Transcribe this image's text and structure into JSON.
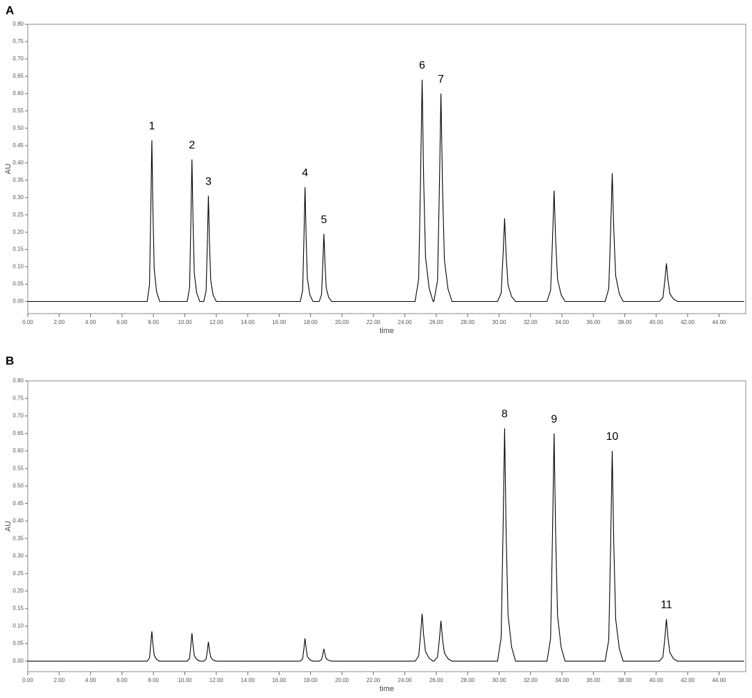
{
  "chart_data": [
    {
      "type": "line",
      "panel": "A",
      "xlabel": "time",
      "ylabel": "AU",
      "color": "#000000",
      "grid": false,
      "xlim": [
        0,
        45.7
      ],
      "ylim": [
        -0.035,
        0.8
      ],
      "xticks": [
        {
          "value": 0,
          "label": "0.00"
        },
        {
          "value": 2,
          "label": "2.00"
        },
        {
          "value": 4,
          "label": "4.00"
        },
        {
          "value": 6,
          "label": "6.00"
        },
        {
          "value": 8,
          "label": "8.00"
        },
        {
          "value": 10,
          "label": "10.00"
        },
        {
          "value": 12,
          "label": "12.00"
        },
        {
          "value": 14,
          "label": "14.00"
        },
        {
          "value": 16,
          "label": "16.00"
        },
        {
          "value": 18,
          "label": "18.00"
        },
        {
          "value": 20,
          "label": "20.00"
        },
        {
          "value": 22,
          "label": "22.00"
        },
        {
          "value": 24,
          "label": "24.00"
        },
        {
          "value": 26,
          "label": "26.00"
        },
        {
          "value": 28,
          "label": "28.00"
        },
        {
          "value": 30,
          "label": "30.00"
        },
        {
          "value": 32,
          "label": "32.00"
        },
        {
          "value": 34,
          "label": "34.00"
        },
        {
          "value": 36,
          "label": "36.00"
        },
        {
          "value": 38,
          "label": "38.00"
        },
        {
          "value": 40,
          "label": "40.00"
        },
        {
          "value": 42,
          "label": "42.00"
        },
        {
          "value": 44,
          "label": "44.00"
        }
      ],
      "yticks": [
        {
          "value": 0,
          "label": "0.00"
        },
        {
          "value": 0.05,
          "label": "0.05"
        },
        {
          "value": 0.1,
          "label": "0.10"
        },
        {
          "value": 0.15,
          "label": "0.15"
        },
        {
          "value": 0.2,
          "label": "0.20"
        },
        {
          "value": 0.25,
          "label": "0.25"
        },
        {
          "value": 0.3,
          "label": "0.30"
        },
        {
          "value": 0.35,
          "label": "0.35"
        },
        {
          "value": 0.4,
          "label": "0.40"
        },
        {
          "value": 0.45,
          "label": "0.45"
        },
        {
          "value": 0.5,
          "label": "0.50"
        },
        {
          "value": 0.55,
          "label": "0.55"
        },
        {
          "value": 0.6,
          "label": "0.60"
        },
        {
          "value": 0.65,
          "label": "0.65"
        },
        {
          "value": 0.7,
          "label": "0.70"
        },
        {
          "value": 0.75,
          "label": "0.75"
        },
        {
          "value": 0.8,
          "label": "0.80"
        }
      ],
      "x": [
        0,
        7.6,
        7.75,
        7.83,
        7.9,
        7.97,
        8.05,
        8.2,
        8.4,
        10.15,
        10.3,
        10.38,
        10.45,
        10.52,
        10.6,
        10.75,
        10.95,
        11.2,
        11.35,
        11.43,
        11.5,
        11.57,
        11.65,
        11.8,
        12.0,
        17.35,
        17.5,
        17.58,
        17.65,
        17.72,
        17.8,
        17.95,
        18.15,
        18.55,
        18.7,
        18.78,
        18.85,
        18.92,
        19.0,
        19.15,
        19.35,
        24.65,
        24.88,
        25.0,
        25.1,
        25.2,
        25.32,
        25.55,
        25.8,
        25.85,
        26.08,
        26.2,
        26.3,
        26.4,
        26.52,
        26.75,
        27.0,
        29.9,
        30.13,
        30.25,
        30.35,
        30.45,
        30.57,
        30.8,
        31.05,
        33.05,
        33.28,
        33.4,
        33.5,
        33.6,
        33.72,
        33.95,
        34.2,
        36.75,
        36.98,
        37.1,
        37.2,
        37.3,
        37.42,
        37.65,
        37.9,
        40.2,
        40.43,
        40.55,
        40.65,
        40.75,
        40.87,
        41.1,
        41.35,
        45.6
      ],
      "values": [
        0,
        0,
        0.047,
        0.256,
        0.465,
        0.256,
        0.093,
        0.028,
        0,
        0,
        0.041,
        0.226,
        0.41,
        0.226,
        0.082,
        0.025,
        0,
        0,
        0.031,
        0.168,
        0.305,
        0.168,
        0.061,
        0.018,
        0,
        0,
        0.033,
        0.182,
        0.33,
        0.182,
        0.066,
        0.02,
        0,
        0,
        0.02,
        0.107,
        0.195,
        0.107,
        0.039,
        0.012,
        0,
        0,
        0.064,
        0.352,
        0.64,
        0.352,
        0.128,
        0.038,
        0,
        0,
        0.06,
        0.33,
        0.6,
        0.33,
        0.12,
        0.036,
        0,
        0,
        0.024,
        0.132,
        0.24,
        0.132,
        0.048,
        0.014,
        0,
        0,
        0.032,
        0.176,
        0.32,
        0.176,
        0.064,
        0.019,
        0,
        0,
        0.037,
        0.204,
        0.37,
        0.204,
        0.074,
        0.022,
        0,
        0,
        0.011,
        0.061,
        0.11,
        0.061,
        0.022,
        0.007,
        0,
        0
      ],
      "annotations": [
        {
          "text": "1",
          "x": 7.9,
          "y": 0.465
        },
        {
          "text": "2",
          "x": 10.45,
          "y": 0.41
        },
        {
          "text": "3",
          "x": 11.5,
          "y": 0.305
        },
        {
          "text": "4",
          "x": 17.65,
          "y": 0.33
        },
        {
          "text": "5",
          "x": 18.85,
          "y": 0.195
        },
        {
          "text": "6",
          "x": 25.1,
          "y": 0.64
        },
        {
          "text": "7",
          "x": 26.3,
          "y": 0.6
        }
      ]
    },
    {
      "type": "line",
      "panel": "B",
      "xlabel": "time",
      "ylabel": "AU",
      "color": "#000000",
      "grid": false,
      "xlim": [
        0,
        45.7
      ],
      "ylim": [
        -0.03,
        0.8
      ],
      "xticks": [
        {
          "value": 0,
          "label": "0.00"
        },
        {
          "value": 2,
          "label": "2.00"
        },
        {
          "value": 4,
          "label": "4.00"
        },
        {
          "value": 6,
          "label": "6.00"
        },
        {
          "value": 8,
          "label": "8.00"
        },
        {
          "value": 10,
          "label": "10.00"
        },
        {
          "value": 12,
          "label": "12.00"
        },
        {
          "value": 14,
          "label": "14.00"
        },
        {
          "value": 16,
          "label": "16.00"
        },
        {
          "value": 18,
          "label": "18.00"
        },
        {
          "value": 20,
          "label": "20.00"
        },
        {
          "value": 22,
          "label": "22.00"
        },
        {
          "value": 24,
          "label": "24.00"
        },
        {
          "value": 26,
          "label": "26.00"
        },
        {
          "value": 28,
          "label": "28.00"
        },
        {
          "value": 30,
          "label": "30.00"
        },
        {
          "value": 32,
          "label": "32.00"
        },
        {
          "value": 34,
          "label": "34.00"
        },
        {
          "value": 36,
          "label": "36.00"
        },
        {
          "value": 38,
          "label": "38.00"
        },
        {
          "value": 40,
          "label": "40.00"
        },
        {
          "value": 42,
          "label": "42.00"
        },
        {
          "value": 44,
          "label": "44.00"
        }
      ],
      "yticks": [
        {
          "value": 0,
          "label": "0.00"
        },
        {
          "value": 0.05,
          "label": "0.05"
        },
        {
          "value": 0.1,
          "label": "0.10"
        },
        {
          "value": 0.15,
          "label": "0.15"
        },
        {
          "value": 0.2,
          "label": "0.20"
        },
        {
          "value": 0.25,
          "label": "0.25"
        },
        {
          "value": 0.3,
          "label": "0.30"
        },
        {
          "value": 0.35,
          "label": "0.35"
        },
        {
          "value": 0.4,
          "label": "0.40"
        },
        {
          "value": 0.45,
          "label": "0.45"
        },
        {
          "value": 0.5,
          "label": "0.50"
        },
        {
          "value": 0.55,
          "label": "0.55"
        },
        {
          "value": 0.6,
          "label": "0.60"
        },
        {
          "value": 0.65,
          "label": "0.65"
        },
        {
          "value": 0.7,
          "label": "0.70"
        },
        {
          "value": 0.75,
          "label": "0.75"
        },
        {
          "value": 0.8,
          "label": "0.80"
        }
      ],
      "x": [
        0,
        7.6,
        7.75,
        7.83,
        7.9,
        7.97,
        8.05,
        8.2,
        8.4,
        10.15,
        10.3,
        10.38,
        10.45,
        10.52,
        10.6,
        10.75,
        10.95,
        11.2,
        11.35,
        11.43,
        11.5,
        11.57,
        11.65,
        11.8,
        12.0,
        17.35,
        17.5,
        17.58,
        17.65,
        17.72,
        17.8,
        17.95,
        18.15,
        18.55,
        18.7,
        18.78,
        18.85,
        18.92,
        19.0,
        19.15,
        19.35,
        24.65,
        24.88,
        25.0,
        25.1,
        25.2,
        25.32,
        25.55,
        25.8,
        25.85,
        26.08,
        26.2,
        26.3,
        26.4,
        26.52,
        26.75,
        27.0,
        29.9,
        30.13,
        30.25,
        30.35,
        30.45,
        30.57,
        30.8,
        31.05,
        33.05,
        33.28,
        33.4,
        33.5,
        33.6,
        33.72,
        33.95,
        34.2,
        36.75,
        36.98,
        37.1,
        37.2,
        37.3,
        37.42,
        37.65,
        37.9,
        40.2,
        40.43,
        40.55,
        40.65,
        40.75,
        40.87,
        41.1,
        41.35,
        45.6
      ],
      "values": [
        0,
        0,
        0.009,
        0.047,
        0.085,
        0.047,
        0.017,
        0.005,
        0,
        0,
        0.008,
        0.044,
        0.08,
        0.044,
        0.016,
        0.005,
        0,
        0,
        0.006,
        0.03,
        0.055,
        0.03,
        0.011,
        0.003,
        0,
        0,
        0.007,
        0.036,
        0.065,
        0.036,
        0.013,
        0.004,
        0,
        0,
        0.004,
        0.019,
        0.035,
        0.019,
        0.007,
        0.002,
        0,
        0,
        0.014,
        0.074,
        0.135,
        0.074,
        0.027,
        0.008,
        0,
        0,
        0.012,
        0.063,
        0.115,
        0.063,
        0.023,
        0.007,
        0,
        0,
        0.067,
        0.366,
        0.665,
        0.366,
        0.133,
        0.04,
        0,
        0,
        0.065,
        0.358,
        0.65,
        0.358,
        0.13,
        0.039,
        0,
        0,
        0.06,
        0.33,
        0.6,
        0.33,
        0.12,
        0.036,
        0,
        0,
        0.012,
        0.066,
        0.12,
        0.066,
        0.024,
        0.007,
        0,
        0
      ],
      "annotations": [
        {
          "text": "8",
          "x": 30.35,
          "y": 0.665
        },
        {
          "text": "9",
          "x": 33.5,
          "y": 0.65
        },
        {
          "text": "10",
          "x": 37.2,
          "y": 0.6
        },
        {
          "text": "11",
          "x": 40.65,
          "y": 0.12
        }
      ]
    }
  ]
}
